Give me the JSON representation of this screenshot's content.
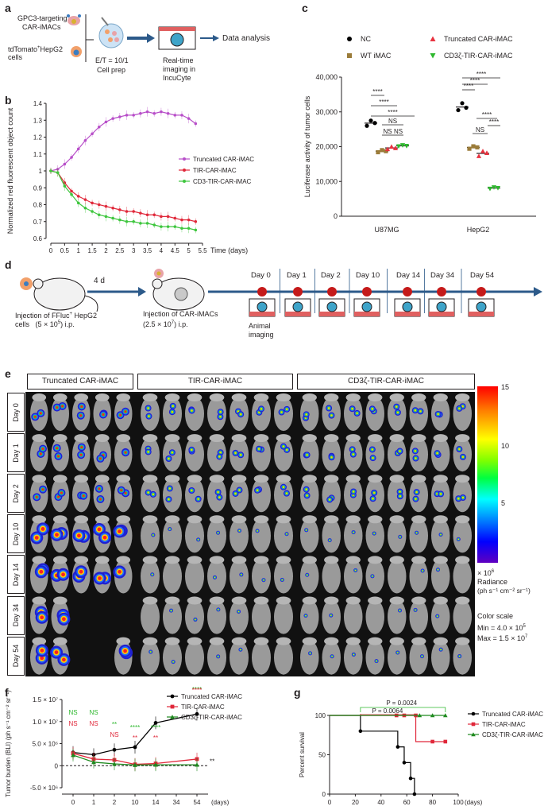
{
  "panel_labels": {
    "a": "a",
    "b": "b",
    "c": "c",
    "d": "d",
    "e": "e",
    "f": "f",
    "g": "g"
  },
  "panel_a": {
    "gpc3_line1": "GPC3-targeting",
    "gpc3_line2": "CAR-iMACs",
    "tdtomato": "tdTomato",
    "tdtomato_sup": "+",
    "hepg2": "HepG2",
    "cells": "cells",
    "et_ratio": "E/T = 10/1",
    "cell_prep": "Cell prep",
    "imaging_line1": "Real-time",
    "imaging_line2": "imaging in",
    "imaging_line3": "IncuCyte",
    "data_analysis": "Data analysis"
  },
  "panel_d": {
    "injection1_line1": "Injection of FFluc",
    "injection1_sup": "+",
    "injection1_hepg2": " HepG2",
    "injection1_line2": "cells",
    "injection1_cells": "(5 × 10",
    "injection1_exp": "5",
    "injection1_route": ") i.p.",
    "interval": "4 d",
    "injection2_line1": "Injection of CAR-iMACs",
    "injection2_line2": "(2.5 × 10",
    "injection2_exp": "7",
    "injection2_route": ") i.p.",
    "days": [
      "Day 0",
      "Day 1",
      "Day 2",
      "Day 10",
      "Day 14",
      "Day 34",
      "Day 54"
    ],
    "animal_imaging_1": "Animal",
    "animal_imaging_2": "imaging"
  },
  "panel_e": {
    "groups": [
      "Truncated CAR-iMAC",
      "TIR-CAR-iMAC",
      "CD3ζ-TIR-CAR-iMAC"
    ],
    "rows": [
      "Day 0",
      "Day 1",
      "Day 2",
      "Day 10",
      "Day 14",
      "Day 34",
      "Day 54"
    ],
    "scale_max": "15",
    "scale_ticks": [
      "15",
      "10",
      "5"
    ],
    "scale_multiplier": "× 10",
    "scale_multiplier_exp": "6",
    "radiance_label": "Radiance",
    "radiance_units": "(ph s⁻¹ cm⁻² sr⁻¹)",
    "color_scale": "Color scale",
    "min_label": "Min = 4.0 × 10",
    "min_exp": "5",
    "max_label": "Max = 1.5 × 10",
    "max_exp": "7"
  },
  "chart_data": [
    {
      "id": "b",
      "type": "line",
      "ylabel": "Normalized red fluorescent object count",
      "xlabel": "Time (days)",
      "xlim": [
        0,
        5.5
      ],
      "ylim": [
        0.6,
        1.4
      ],
      "xticks": [
        "0",
        "0.5",
        "1",
        "1.5",
        "2",
        "2.5",
        "3",
        "3.5",
        "4",
        "4.5",
        "5",
        "5.5"
      ],
      "yticks": [
        "0.6",
        "0.7",
        "0.8",
        "0.9",
        "1",
        "1.1",
        "1.2",
        "1.3",
        "1.4"
      ],
      "x": [
        0,
        0.25,
        0.5,
        0.75,
        1,
        1.25,
        1.5,
        1.75,
        2,
        2.25,
        2.5,
        2.75,
        3,
        3.25,
        3.5,
        3.75,
        4,
        4.25,
        4.5,
        4.75,
        5,
        5.25
      ],
      "series": [
        {
          "name": "Truncated CAR-iMAC",
          "color": "#b84fc9",
          "values": [
            1.0,
            1.01,
            1.04,
            1.08,
            1.13,
            1.18,
            1.22,
            1.26,
            1.29,
            1.31,
            1.32,
            1.33,
            1.33,
            1.34,
            1.35,
            1.34,
            1.35,
            1.34,
            1.33,
            1.33,
            1.31,
            1.28
          ]
        },
        {
          "name": "TIR-CAR-iMAC",
          "color": "#e0283a",
          "values": [
            1.0,
            0.99,
            0.93,
            0.88,
            0.85,
            0.83,
            0.81,
            0.8,
            0.79,
            0.78,
            0.77,
            0.76,
            0.76,
            0.75,
            0.74,
            0.74,
            0.73,
            0.73,
            0.72,
            0.71,
            0.71,
            0.7
          ]
        },
        {
          "name": "CD3-TIR-CAR-iMAC",
          "color": "#3ec63e",
          "values": [
            1.0,
            0.99,
            0.91,
            0.86,
            0.81,
            0.78,
            0.76,
            0.74,
            0.73,
            0.72,
            0.71,
            0.7,
            0.7,
            0.69,
            0.69,
            0.68,
            0.67,
            0.67,
            0.67,
            0.66,
            0.66,
            0.65
          ]
        }
      ]
    },
    {
      "id": "c",
      "type": "scatter",
      "ylabel": "Luciferase activity of tumor cells",
      "ylim": [
        0,
        40000
      ],
      "yticks": [
        "0",
        "10,000",
        "20,000",
        "30,000",
        "40,000"
      ],
      "categories": [
        "U87MG",
        "HepG2"
      ],
      "legend": [
        "NC",
        "Truncated CAR-iMAC",
        "WT iMAC",
        "CD3ζ-TIR-CAR-iMAC"
      ],
      "series": [
        {
          "name": "NC",
          "color": "#000000",
          "marker": "circle",
          "values": [
            [
              26000,
              27500,
              26800
            ],
            [
              30500,
              32500,
              31200
            ]
          ]
        },
        {
          "name": "WT iMAC",
          "color": "#9b7c3a",
          "marker": "square",
          "values": [
            [
              18400,
              19000,
              18700
            ],
            [
              19400,
              20100,
              19800
            ]
          ]
        },
        {
          "name": "Truncated CAR-iMAC",
          "color": "#e8323f",
          "marker": "triangle",
          "values": [
            [
              19300,
              20000,
              19600
            ],
            [
              17300,
              18700,
              18200
            ]
          ]
        },
        {
          "name": "CD3ζ-TIR-CAR-iMAC",
          "color": "#2eb82e",
          "marker": "triangle-down",
          "values": [
            [
              20100,
              20400,
              20200
            ],
            [
              7900,
              8300,
              8100
            ]
          ]
        }
      ],
      "significance": [
        "****",
        "****",
        "****",
        "NS",
        "NS",
        "NS",
        "****",
        "****",
        "****",
        "NS",
        "****",
        "****"
      ]
    },
    {
      "id": "f",
      "type": "line",
      "ylabel": "Tumor burden (BLI) (ph s⁻¹ cm⁻² sr⁻¹)",
      "xlabel": "(days)",
      "categories": [
        "0",
        "1",
        "2",
        "10",
        "14",
        "34",
        "54"
      ],
      "ylim": [
        -5000000,
        15000000
      ],
      "yticks": [
        "-5.0 × 10⁶",
        "0",
        "5.0 × 10⁶",
        "1.0 × 10⁷",
        "1.5 × 10⁷"
      ],
      "series": [
        {
          "name": "Truncated CAR-iMAC",
          "color": "#000000",
          "marker": "circle",
          "values": [
            3000000,
            2500000,
            3600000,
            4200000,
            9700000,
            11700000,
            null
          ]
        },
        {
          "name": "TIR-CAR-iMAC",
          "color": "#e0283a",
          "marker": "square",
          "values": [
            2800000,
            1500000,
            1300000,
            300000,
            500000,
            1500000,
            null
          ]
        },
        {
          "name": "CD3ζ-TIR-CAR-iMAC",
          "color": "#1f8a1f",
          "marker": "triangle",
          "values": [
            2400000,
            800000,
            400000,
            150000,
            200000,
            200000,
            null
          ]
        }
      ],
      "sig_green": [
        "NS",
        "NS",
        "**",
        "****",
        "****",
        "****"
      ],
      "sig_red": [
        "NS",
        "NS",
        "NS",
        "**",
        "**",
        "****"
      ],
      "end_sig": "**"
    },
    {
      "id": "g",
      "type": "line",
      "ylabel": "Percent survival",
      "xlabel": "(days)",
      "xlim": [
        0,
        100
      ],
      "ylim": [
        0,
        100
      ],
      "xticks": [
        "0",
        "20",
        "40",
        "60",
        "80",
        "100"
      ],
      "yticks": [
        "0",
        "50",
        "100"
      ],
      "pvalues": [
        "P = 0.0024",
        "P = 0.0064"
      ],
      "series": [
        {
          "name": "Truncated CAR-iMAC",
          "color": "#000000",
          "steps": [
            [
              0,
              100
            ],
            [
              24,
              100
            ],
            [
              24,
              80
            ],
            [
              53,
              80
            ],
            [
              53,
              60
            ],
            [
              58,
              60
            ],
            [
              58,
              40
            ],
            [
              63,
              40
            ],
            [
              63,
              20
            ],
            [
              66,
              20
            ],
            [
              66,
              0
            ]
          ]
        },
        {
          "name": "TIR-CAR-iMAC",
          "color": "#e0283a",
          "steps": [
            [
              0,
              100
            ],
            [
              67,
              100
            ],
            [
              67,
              66.7
            ],
            [
              90,
              66.7
            ]
          ]
        },
        {
          "name": "CD3ζ-TIR-CAR-iMAC",
          "color": "#1f8a1f",
          "steps": [
            [
              0,
              100
            ],
            [
              90,
              100
            ]
          ]
        }
      ]
    }
  ]
}
